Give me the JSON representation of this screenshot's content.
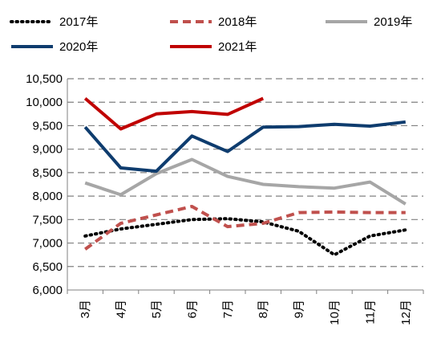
{
  "chart_data": {
    "type": "line",
    "categories": [
      "3月",
      "4月",
      "5月",
      "6月",
      "7月",
      "8月",
      "9月",
      "10月",
      "11月",
      "12月"
    ],
    "ylim": [
      6000,
      10500
    ],
    "yticks": [
      "6,000",
      "6,500",
      "7,000",
      "7,500",
      "8,000",
      "8,500",
      "9,000",
      "9,500",
      "10,000",
      "10,500"
    ],
    "ytick_values": [
      6000,
      6500,
      7000,
      7500,
      8000,
      8500,
      9000,
      9500,
      10000,
      10500
    ],
    "grid": "horizontal-dashed",
    "legend_position": "top",
    "series": [
      {
        "name": "2017年",
        "color": "#000000",
        "style": "dotted",
        "values": [
          7150,
          7300,
          7400,
          7500,
          7520,
          7450,
          7250,
          6750,
          7150,
          7280
        ]
      },
      {
        "name": "2018年",
        "color": "#c0504d",
        "style": "dashed",
        "values": [
          6870,
          7420,
          7600,
          7780,
          7350,
          7420,
          7650,
          7660,
          7650,
          7650
        ]
      },
      {
        "name": "2019年",
        "color": "#a6a6a6",
        "style": "solid",
        "values": [
          8280,
          8030,
          8480,
          8780,
          8420,
          8250,
          8200,
          8170,
          8300,
          7830
        ]
      },
      {
        "name": "2020年",
        "color": "#0e3c6e",
        "style": "solid",
        "values": [
          9470,
          8600,
          8530,
          9280,
          8950,
          9470,
          9480,
          9530,
          9490,
          9580
        ]
      },
      {
        "name": "2021年",
        "color": "#c00000",
        "style": "solid",
        "values": [
          10080,
          9430,
          9750,
          9800,
          9740,
          10080,
          null,
          null,
          null,
          null
        ]
      }
    ]
  }
}
